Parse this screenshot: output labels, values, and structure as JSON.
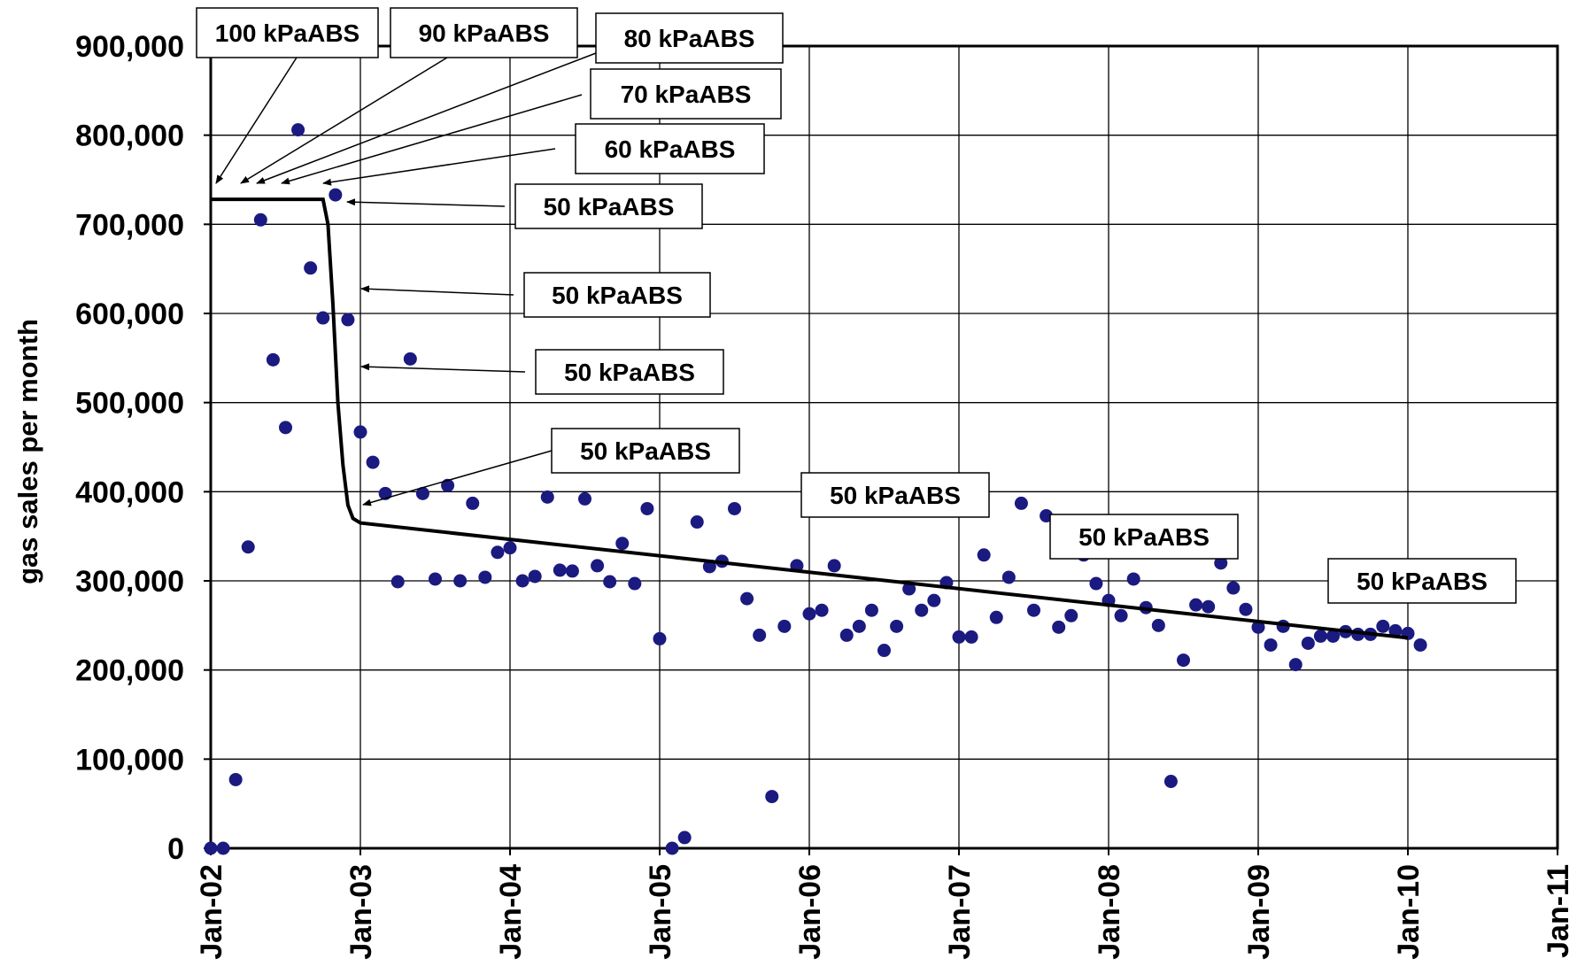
{
  "chart_data": {
    "type": "scatter",
    "title": "",
    "xlabel": "",
    "ylabel": "gas sales per month",
    "x_tick_labels": [
      "Jan-02",
      "Jan-03",
      "Jan-04",
      "Jan-05",
      "Jan-06",
      "Jan-07",
      "Jan-08",
      "Jan-09",
      "Jan-10",
      "Jan-11"
    ],
    "y_tick_labels": [
      "0",
      "100,000",
      "200,000",
      "300,000",
      "400,000",
      "500,000",
      "600,000",
      "700,000",
      "800,000",
      "900,000"
    ],
    "xlim": [
      "2002-01",
      "2011-01"
    ],
    "ylim": [
      0,
      900000
    ],
    "grid": true,
    "colors": {
      "points": "#1a1a80",
      "line": "#000000"
    },
    "series": [
      {
        "type": "scatter",
        "x": [
          "2002-01",
          "2002-02",
          "2002-03",
          "2002-04",
          "2002-05",
          "2002-06",
          "2002-07",
          "2002-08",
          "2002-09",
          "2002-10",
          "2002-11",
          "2002-12",
          "2003-01",
          "2003-02",
          "2003-03",
          "2003-04",
          "2003-05",
          "2003-06",
          "2003-07",
          "2003-08",
          "2003-09",
          "2003-10",
          "2003-11",
          "2003-12",
          "2004-01",
          "2004-02",
          "2004-03",
          "2004-04",
          "2004-05",
          "2004-06",
          "2004-07",
          "2004-08",
          "2004-09",
          "2004-10",
          "2004-11",
          "2004-12",
          "2005-01",
          "2005-02",
          "2005-03",
          "2005-04",
          "2005-05",
          "2005-06",
          "2005-07",
          "2005-08",
          "2005-09",
          "2005-10",
          "2005-11",
          "2005-12",
          "2006-01",
          "2006-02",
          "2006-03",
          "2006-04",
          "2006-05",
          "2006-06",
          "2006-07",
          "2006-08",
          "2006-09",
          "2006-10",
          "2006-11",
          "2006-12",
          "2007-01",
          "2007-02",
          "2007-03",
          "2007-04",
          "2007-05",
          "2007-06",
          "2007-07",
          "2007-08",
          "2007-09",
          "2007-10",
          "2007-11",
          "2007-12",
          "2008-01",
          "2008-02",
          "2008-03",
          "2008-04",
          "2008-05",
          "2008-06",
          "2008-07",
          "2008-08",
          "2008-09",
          "2008-10",
          "2008-11",
          "2008-12",
          "2009-01",
          "2009-02",
          "2009-03",
          "2009-04",
          "2009-05",
          "2009-06",
          "2009-07",
          "2009-08",
          "2009-09",
          "2009-10",
          "2009-11",
          "2009-12",
          "2010-01",
          "2010-02"
        ],
        "y": [
          0,
          0,
          77000,
          338000,
          705000,
          548000,
          472000,
          806000,
          651000,
          595000,
          733000,
          593000,
          467000,
          433000,
          398000,
          299000,
          549000,
          398000,
          302000,
          407000,
          300000,
          387000,
          304000,
          332000,
          337000,
          300000,
          305000,
          394000,
          312000,
          311000,
          392000,
          317000,
          299000,
          342000,
          297000,
          381000,
          235000,
          0,
          12000,
          366000,
          316000,
          322000,
          381000,
          280000,
          239000,
          58000,
          249000,
          317000,
          263000,
          267000,
          317000,
          239000,
          249000,
          267000,
          222000,
          249000,
          291000,
          267000,
          278000,
          298000,
          237000,
          237000,
          329000,
          259000,
          304000,
          387000,
          267000,
          373000,
          248000,
          261000,
          329000,
          297000,
          278000,
          261000,
          302000,
          270000,
          250000,
          75000,
          211000,
          273000,
          271000,
          320000,
          292000,
          268000,
          248000,
          228000,
          249000,
          206000,
          230000,
          238000,
          238000,
          243000,
          240000,
          240000,
          249000,
          244000,
          241000,
          228000
        ]
      },
      {
        "type": "line",
        "x": [
          "2002-01",
          "2002-10",
          "2002-10.4",
          "2002-10.8",
          "2002-11.2",
          "2002-11.6",
          "2002-12",
          "2002-12.4",
          "2003-01",
          "2010-01"
        ],
        "y": [
          728000,
          728000,
          700000,
          610000,
          500000,
          430000,
          385000,
          370000,
          365000,
          236000
        ]
      }
    ],
    "annotations": [
      "100 kPaABS",
      "90 kPaABS",
      "80 kPaABS",
      "70 kPaABS",
      "60 kPaABS",
      "50 kPaABS",
      "50 kPaABS",
      "50 kPaABS",
      "50 kPaABS",
      "50 kPaABS",
      "50 kPaABS",
      "50 kPaABS"
    ]
  }
}
